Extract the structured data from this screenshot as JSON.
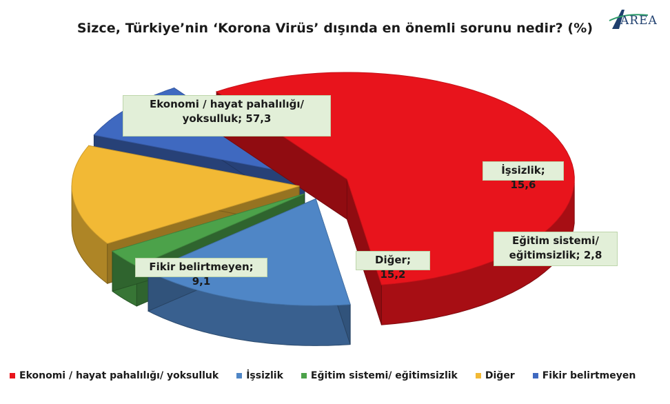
{
  "logo": {
    "text": "AREA"
  },
  "chart_data": {
    "type": "pie",
    "title": "Sizce, Türkiye’nin ‘Korona Virüs’ dışında en önemli sorunu nedir? (%)",
    "categories": [
      "Ekonomi / hayat pahalılığı/ yoksulluk",
      "İşsizlik",
      "Eğitim sistemi/ eğitimsizlik",
      "Diğer",
      "Fikir belirtmeyen"
    ],
    "values": [
      57.3,
      15.6,
      2.8,
      15.2,
      9.1
    ],
    "colors": [
      "#e8141c",
      "#4f86c6",
      "#4ca24a",
      "#f2b935",
      "#3f69c0"
    ],
    "data_labels": [
      {
        "line1": "Ekonomi / hayat pahalılığı/",
        "line2": "yoksulluk; 57,3"
      },
      {
        "line1": "İşsizlik; 15,6",
        "line2": ""
      },
      {
        "line1": "Eğitim sistemi/",
        "line2": "eğitimsizlik; 2,8"
      },
      {
        "line1": "Diğer; 15,2",
        "line2": ""
      },
      {
        "line1": "Fikir belirtmeyen; 9,1",
        "line2": ""
      }
    ],
    "legend_position": "bottom",
    "legend": [
      "Ekonomi / hayat pahalılığı/ yoksulluk",
      "İşsizlik",
      "Eğitim sistemi/ eğitimsizlik",
      "Diğer",
      "Fikir belirtmeyen"
    ]
  }
}
